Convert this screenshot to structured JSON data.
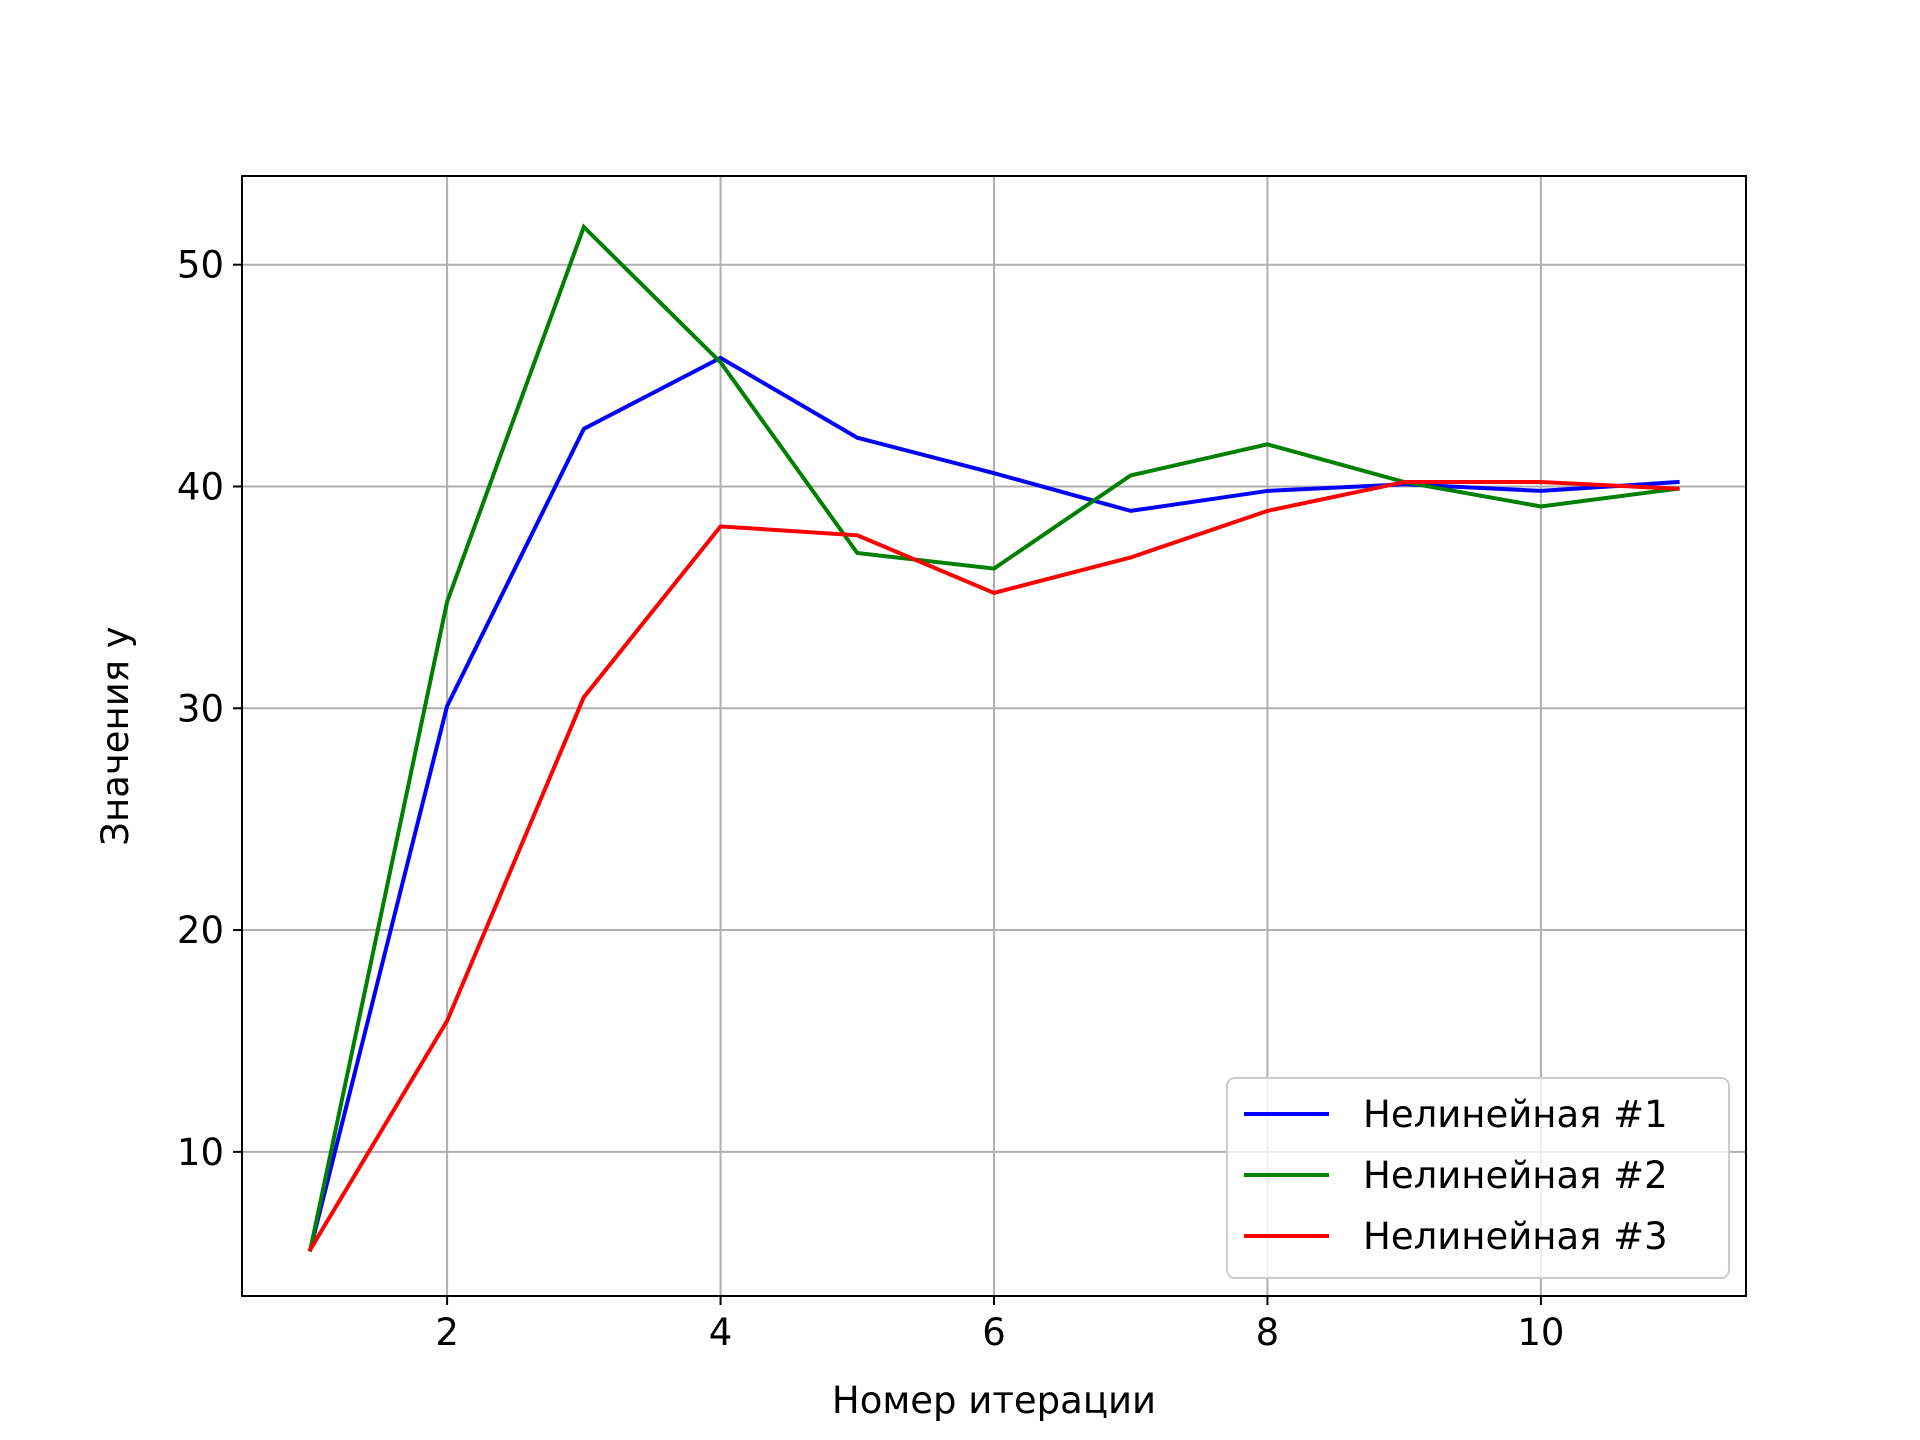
{
  "chart_data": {
    "type": "line",
    "title": "",
    "xlabel": "Номер итерации",
    "ylabel": "Значения y",
    "xlim": [
      0.5,
      11.5
    ],
    "ylim": [
      3.5,
      54
    ],
    "xticks": [
      2,
      4,
      6,
      8,
      10
    ],
    "yticks": [
      10,
      20,
      30,
      40,
      50
    ],
    "grid": true,
    "legend_position": "lower-right",
    "x": [
      1,
      2,
      3,
      4,
      5,
      6,
      7,
      8,
      9,
      10,
      11
    ],
    "series": [
      {
        "name": "Нелинейная #1",
        "color": "#0000ff",
        "values": [
          5.6,
          30.1,
          42.6,
          45.8,
          42.2,
          40.6,
          38.9,
          39.8,
          40.1,
          39.8,
          40.2
        ]
      },
      {
        "name": "Нелинейная #2",
        "color": "#008000",
        "values": [
          5.6,
          34.8,
          51.7,
          45.6,
          37.0,
          36.3,
          40.5,
          41.9,
          40.2,
          39.1,
          39.9
        ]
      },
      {
        "name": "Нелинейная #3",
        "color": "#ff0000",
        "values": [
          5.6,
          15.9,
          30.5,
          38.2,
          37.8,
          35.2,
          36.8,
          38.9,
          40.2,
          40.2,
          39.9
        ]
      }
    ]
  }
}
